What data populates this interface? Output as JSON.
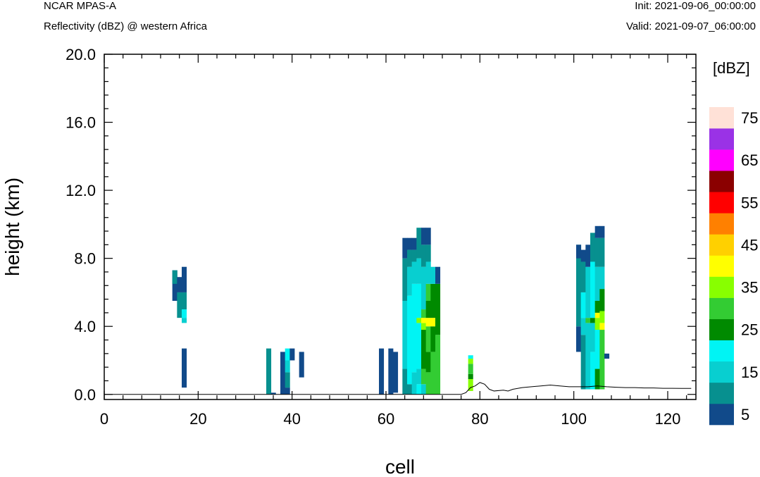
{
  "header": {
    "model": "NCAR MPAS-A",
    "field": "Reflectivity (dBZ) @ western Africa",
    "init": "Init: 2021-09-06_00:00:00",
    "valid": "Valid: 2021-09-07_06:00:00"
  },
  "chart_data": {
    "type": "heatmap",
    "xlabel": "cell",
    "ylabel": "height (km)",
    "xlim": [
      0,
      126
    ],
    "ylim": [
      -0.3,
      20.0
    ],
    "x_ticks": [
      "0",
      "20",
      "40",
      "60",
      "80",
      "100",
      "120"
    ],
    "y_ticks": [
      "0.0",
      "4.0",
      "8.0",
      "12.0",
      "16.0",
      "20.0"
    ],
    "colorbar": {
      "title": "[dBZ]",
      "labels": [
        "5",
        "15",
        "25",
        "35",
        "45",
        "55",
        "65",
        "75"
      ],
      "levels": [
        5,
        10,
        15,
        20,
        25,
        30,
        35,
        40,
        45,
        50,
        55,
        60,
        65,
        70,
        75
      ],
      "colors": [
        "#114a8a",
        "#07908f",
        "#08cfd0",
        "#00f4f4",
        "#008a00",
        "#33cc33",
        "#88ff00",
        "#ffff00",
        "#ffd000",
        "#ff8000",
        "#ff0000",
        "#8b0000",
        "#ff00ff",
        "#9a32e6",
        "#ffe1d7"
      ]
    },
    "reflectivity_columns": [
      {
        "cell": 15,
        "cells": [
          [
            5.5,
            7.3,
            5
          ],
          [
            6.5,
            7.3,
            10
          ]
        ]
      },
      {
        "cell": 16,
        "cells": [
          [
            4.5,
            6.0,
            10
          ],
          [
            6.0,
            6.9,
            5
          ]
        ]
      },
      {
        "cell": 17,
        "cells": [
          [
            4.2,
            4.5,
            15
          ],
          [
            4.5,
            5.0,
            20
          ],
          [
            5.0,
            6.0,
            10
          ],
          [
            6.0,
            7.5,
            5
          ],
          [
            0.4,
            2.7,
            5
          ]
        ]
      },
      {
        "cell": 35,
        "cells": [
          [
            0.0,
            2.7,
            10
          ]
        ]
      },
      {
        "cell": 36,
        "cells": [
          [
            0.0,
            0.1,
            5
          ]
        ]
      },
      {
        "cell": 38,
        "cells": [
          [
            0.0,
            2.5,
            5
          ]
        ]
      },
      {
        "cell": 39,
        "cells": [
          [
            0.0,
            0.4,
            5
          ],
          [
            0.4,
            1.3,
            10
          ],
          [
            1.3,
            2.0,
            15
          ],
          [
            2.0,
            2.7,
            20
          ]
        ]
      },
      {
        "cell": 40,
        "cells": [
          [
            2.0,
            2.7,
            5
          ]
        ]
      },
      {
        "cell": 42,
        "cells": [
          [
            1.0,
            2.5,
            5
          ]
        ]
      },
      {
        "cell": 59,
        "cells": [
          [
            0.0,
            2.7,
            5
          ]
        ]
      },
      {
        "cell": 61,
        "cells": [
          [
            0.0,
            2.7,
            5
          ]
        ]
      },
      {
        "cell": 62,
        "cells": [
          [
            0.1,
            2.5,
            5
          ]
        ]
      },
      {
        "cell": 64,
        "cells": [
          [
            0.0,
            1.5,
            10
          ],
          [
            1.5,
            5.5,
            15
          ],
          [
            5.5,
            8.0,
            10
          ],
          [
            8.0,
            9.2,
            5
          ]
        ]
      },
      {
        "cell": 65,
        "cells": [
          [
            0.0,
            0.6,
            10
          ],
          [
            0.6,
            5.8,
            20
          ],
          [
            5.8,
            7.5,
            15
          ],
          [
            7.5,
            8.5,
            10
          ],
          [
            8.5,
            9.2,
            5
          ]
        ]
      },
      {
        "cell": 66,
        "cells": [
          [
            0.0,
            1.3,
            15
          ],
          [
            1.3,
            6.5,
            20
          ],
          [
            6.5,
            7.8,
            15
          ],
          [
            7.8,
            8.5,
            10
          ],
          [
            8.5,
            9.2,
            5
          ]
        ]
      },
      {
        "cell": 67,
        "cells": [
          [
            0.0,
            0.6,
            20
          ],
          [
            0.6,
            1.5,
            15
          ],
          [
            1.5,
            4.2,
            20
          ],
          [
            4.2,
            4.5,
            35
          ],
          [
            4.5,
            6.5,
            20
          ],
          [
            6.5,
            8.0,
            15
          ],
          [
            8.0,
            9.8,
            10
          ]
        ]
      },
      {
        "cell": 68,
        "cells": [
          [
            0.0,
            0.6,
            15
          ],
          [
            0.6,
            1.5,
            30
          ],
          [
            1.5,
            3.8,
            25
          ],
          [
            3.8,
            4.2,
            35
          ],
          [
            4.2,
            4.5,
            40
          ],
          [
            4.5,
            5.0,
            30
          ],
          [
            5.0,
            7.5,
            15
          ],
          [
            7.5,
            8.8,
            10
          ],
          [
            8.8,
            9.8,
            5
          ]
        ]
      },
      {
        "cell": 69,
        "cells": [
          [
            0.0,
            1.3,
            30
          ],
          [
            1.3,
            2.5,
            25
          ],
          [
            2.5,
            4.0,
            30
          ],
          [
            4.0,
            4.5,
            40
          ],
          [
            4.5,
            5.5,
            25
          ],
          [
            5.5,
            6.5,
            30
          ],
          [
            6.5,
            7.8,
            15
          ],
          [
            7.8,
            8.8,
            10
          ],
          [
            8.8,
            9.8,
            5
          ]
        ]
      },
      {
        "cell": 70,
        "cells": [
          [
            0.0,
            2.5,
            30
          ],
          [
            2.5,
            4.0,
            25
          ],
          [
            4.0,
            4.5,
            40
          ],
          [
            4.5,
            6.5,
            25
          ],
          [
            6.5,
            7.5,
            15
          ]
        ]
      },
      {
        "cell": 71,
        "cells": [
          [
            0.0,
            3.5,
            30
          ],
          [
            3.5,
            6.5,
            25
          ],
          [
            6.5,
            7.5,
            5
          ]
        ]
      },
      {
        "cell": 78,
        "cells": [
          [
            0.2,
            0.9,
            35
          ],
          [
            0.9,
            1.2,
            25
          ],
          [
            1.2,
            1.8,
            30
          ],
          [
            1.8,
            2.1,
            35
          ],
          [
            2.1,
            2.3,
            20
          ]
        ]
      },
      {
        "cell": 101,
        "cells": [
          [
            2.5,
            4.0,
            5
          ],
          [
            4.0,
            5.5,
            10
          ],
          [
            5.5,
            8.8,
            10
          ],
          [
            8.0,
            8.8,
            5
          ]
        ]
      },
      {
        "cell": 102,
        "cells": [
          [
            0.3,
            3.5,
            10
          ],
          [
            3.5,
            4.5,
            15
          ],
          [
            4.5,
            6.0,
            20
          ],
          [
            6.0,
            7.8,
            10
          ],
          [
            7.8,
            8.5,
            5
          ]
        ]
      },
      {
        "cell": 103,
        "cells": [
          [
            0.3,
            4.2,
            15
          ],
          [
            4.2,
            4.5,
            30
          ],
          [
            4.5,
            7.5,
            15
          ],
          [
            7.5,
            8.8,
            5
          ]
        ]
      },
      {
        "cell": 104,
        "cells": [
          [
            0.3,
            2.5,
            20
          ],
          [
            2.5,
            4.2,
            15
          ],
          [
            4.2,
            4.5,
            25
          ],
          [
            4.5,
            7.8,
            20
          ],
          [
            7.8,
            9.5,
            10
          ]
        ]
      },
      {
        "cell": 105,
        "cells": [
          [
            0.3,
            1.5,
            25
          ],
          [
            1.5,
            3.8,
            20
          ],
          [
            3.8,
            4.5,
            35
          ],
          [
            4.5,
            4.8,
            40
          ],
          [
            4.8,
            5.5,
            25
          ],
          [
            5.5,
            7.5,
            15
          ],
          [
            7.5,
            9.2,
            10
          ],
          [
            9.2,
            9.9,
            5
          ]
        ]
      },
      {
        "cell": 106,
        "cells": [
          [
            0.3,
            3.8,
            30
          ],
          [
            3.8,
            4.2,
            40
          ],
          [
            4.2,
            4.9,
            35
          ],
          [
            4.9,
            6.2,
            25
          ],
          [
            6.2,
            7.5,
            15
          ],
          [
            7.5,
            9.2,
            10
          ],
          [
            9.2,
            9.9,
            5
          ]
        ]
      },
      {
        "cell": 107,
        "cells": [
          [
            2.1,
            2.4,
            5
          ]
        ]
      }
    ],
    "terrain": {
      "x": [
        0,
        76,
        77,
        78,
        79,
        80,
        81,
        82,
        83,
        85,
        86,
        87,
        89,
        91,
        93,
        95,
        97,
        99,
        101,
        103,
        105,
        107,
        109,
        111,
        113,
        115,
        117,
        119,
        121,
        123,
        125
      ],
      "y": [
        0.0,
        0.0,
        0.1,
        0.4,
        0.5,
        0.7,
        0.6,
        0.3,
        0.2,
        0.25,
        0.2,
        0.3,
        0.4,
        0.45,
        0.5,
        0.55,
        0.5,
        0.45,
        0.45,
        0.45,
        0.5,
        0.45,
        0.42,
        0.4,
        0.4,
        0.38,
        0.38,
        0.36,
        0.36,
        0.35,
        0.35
      ]
    }
  }
}
